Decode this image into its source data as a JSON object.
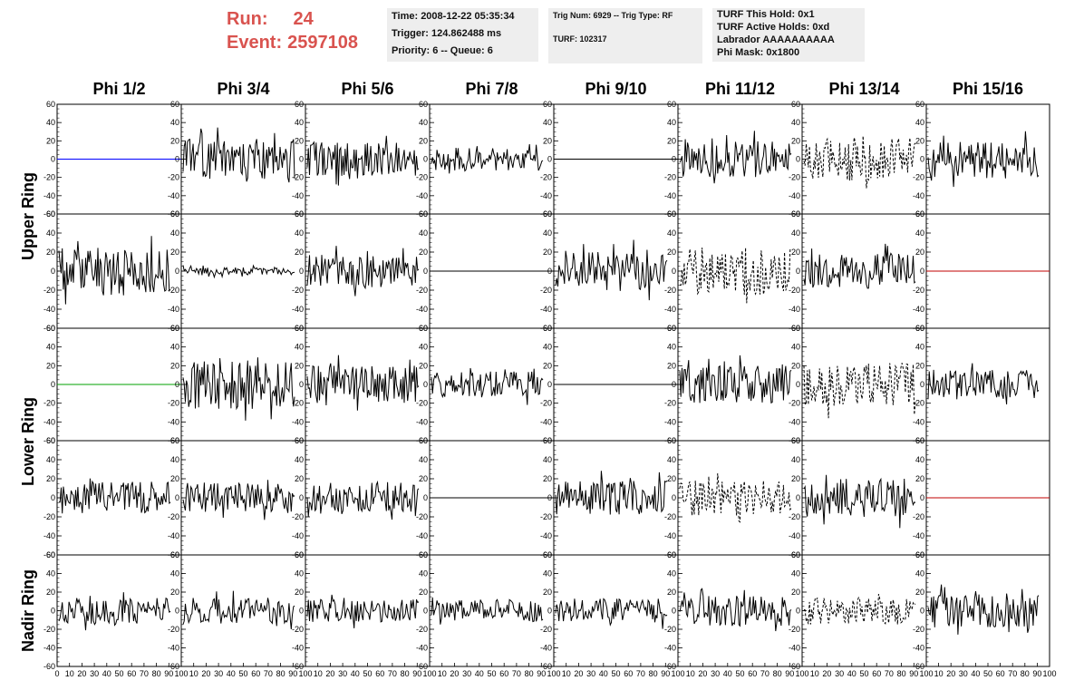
{
  "header": {
    "run_label": "Run:",
    "run_value": "24",
    "event_label": "Event:",
    "event_value": "2597108"
  },
  "info_boxes": {
    "box1": [
      "Time: 2008-12-22 05:35:34",
      "Trigger: 124.862488 ms",
      "Priority: 6 -- Queue: 6"
    ],
    "box2": [
      "Trig Num: 6929 -- Trig Type: RF",
      "",
      "TURF: 102317"
    ],
    "box3": [
      "TURF This Hold: 0x1",
      "TURF Active Holds: 0xd",
      "Labrador AAAAAAAAAA",
      "Phi Mask: 0x1800"
    ]
  },
  "chart_data": {
    "type": "line",
    "columns": [
      "Phi 1/2",
      "Phi 3/4",
      "Phi 5/6",
      "Phi 7/8",
      "Phi 9/10",
      "Phi 11/12",
      "Phi 13/14",
      "Phi 15/16"
    ],
    "row_labels": [
      {
        "text": "Upper Ring",
        "rows": [
          0,
          1
        ]
      },
      {
        "text": "Lower Ring",
        "rows": [
          2,
          3
        ]
      },
      {
        "text": "Nadir Ring",
        "rows": [
          4,
          4
        ]
      }
    ],
    "ylim": [
      -60,
      60
    ],
    "yticks": [
      -60,
      -40,
      -20,
      0,
      20,
      40,
      60
    ],
    "xlim": [
      0,
      100
    ],
    "xticks": [
      0,
      10,
      20,
      30,
      40,
      50,
      60,
      70,
      80,
      90,
      100
    ],
    "panels": [
      [
        {
          "style": "flat",
          "color": "#0000ff"
        },
        {
          "style": "noise",
          "amp": 22,
          "seed": 11
        },
        {
          "style": "noise",
          "amp": 19,
          "seed": 12
        },
        {
          "style": "noise",
          "amp": 13,
          "seed": 13
        },
        {
          "style": "flat",
          "color": "#000000"
        },
        {
          "style": "noise",
          "amp": 20,
          "seed": 14
        },
        {
          "style": "dashed",
          "amp": 24,
          "seed": 15
        },
        {
          "style": "noise",
          "amp": 21,
          "seed": 16
        }
      ],
      [
        {
          "style": "noise",
          "amp": 26,
          "seed": 21
        },
        {
          "style": "noise",
          "amp": 4,
          "seed": 22
        },
        {
          "style": "noise",
          "amp": 17,
          "seed": 23
        },
        {
          "style": "flat",
          "color": "#000000"
        },
        {
          "style": "noise",
          "amp": 21,
          "seed": 24
        },
        {
          "style": "dashed",
          "amp": 25,
          "seed": 25
        },
        {
          "style": "noise",
          "amp": 18,
          "seed": 26
        },
        {
          "style": "flat",
          "color": "#c00000"
        }
      ],
      [
        {
          "style": "flat",
          "color": "#00a000"
        },
        {
          "style": "noise",
          "amp": 26,
          "seed": 31
        },
        {
          "style": "noise",
          "amp": 20,
          "seed": 32
        },
        {
          "style": "noise",
          "amp": 14,
          "seed": 33
        },
        {
          "style": "flat",
          "color": "#000000"
        },
        {
          "style": "noise",
          "amp": 20,
          "seed": 34
        },
        {
          "style": "dashed",
          "amp": 23,
          "seed": 35
        },
        {
          "style": "noise",
          "amp": 16,
          "seed": 36
        }
      ],
      [
        {
          "style": "noise",
          "amp": 17,
          "seed": 41
        },
        {
          "style": "noise",
          "amp": 16,
          "seed": 42
        },
        {
          "style": "noise",
          "amp": 17,
          "seed": 43
        },
        {
          "style": "flat",
          "color": "#000000"
        },
        {
          "style": "noise",
          "amp": 18,
          "seed": 44
        },
        {
          "style": "dashed",
          "amp": 19,
          "seed": 45
        },
        {
          "style": "noise",
          "amp": 20,
          "seed": 46
        },
        {
          "style": "flat",
          "color": "#c00000"
        }
      ],
      [
        {
          "style": "noise",
          "amp": 14,
          "seed": 51
        },
        {
          "style": "noise",
          "amp": 14,
          "seed": 52
        },
        {
          "style": "noise",
          "amp": 12,
          "seed": 53
        },
        {
          "style": "noise",
          "amp": 12,
          "seed": 54
        },
        {
          "style": "noise",
          "amp": 13,
          "seed": 55
        },
        {
          "style": "noise",
          "amp": 16,
          "seed": 56
        },
        {
          "style": "dashed",
          "amp": 15,
          "seed": 57
        },
        {
          "style": "noise",
          "amp": 18,
          "seed": 58
        }
      ]
    ]
  }
}
